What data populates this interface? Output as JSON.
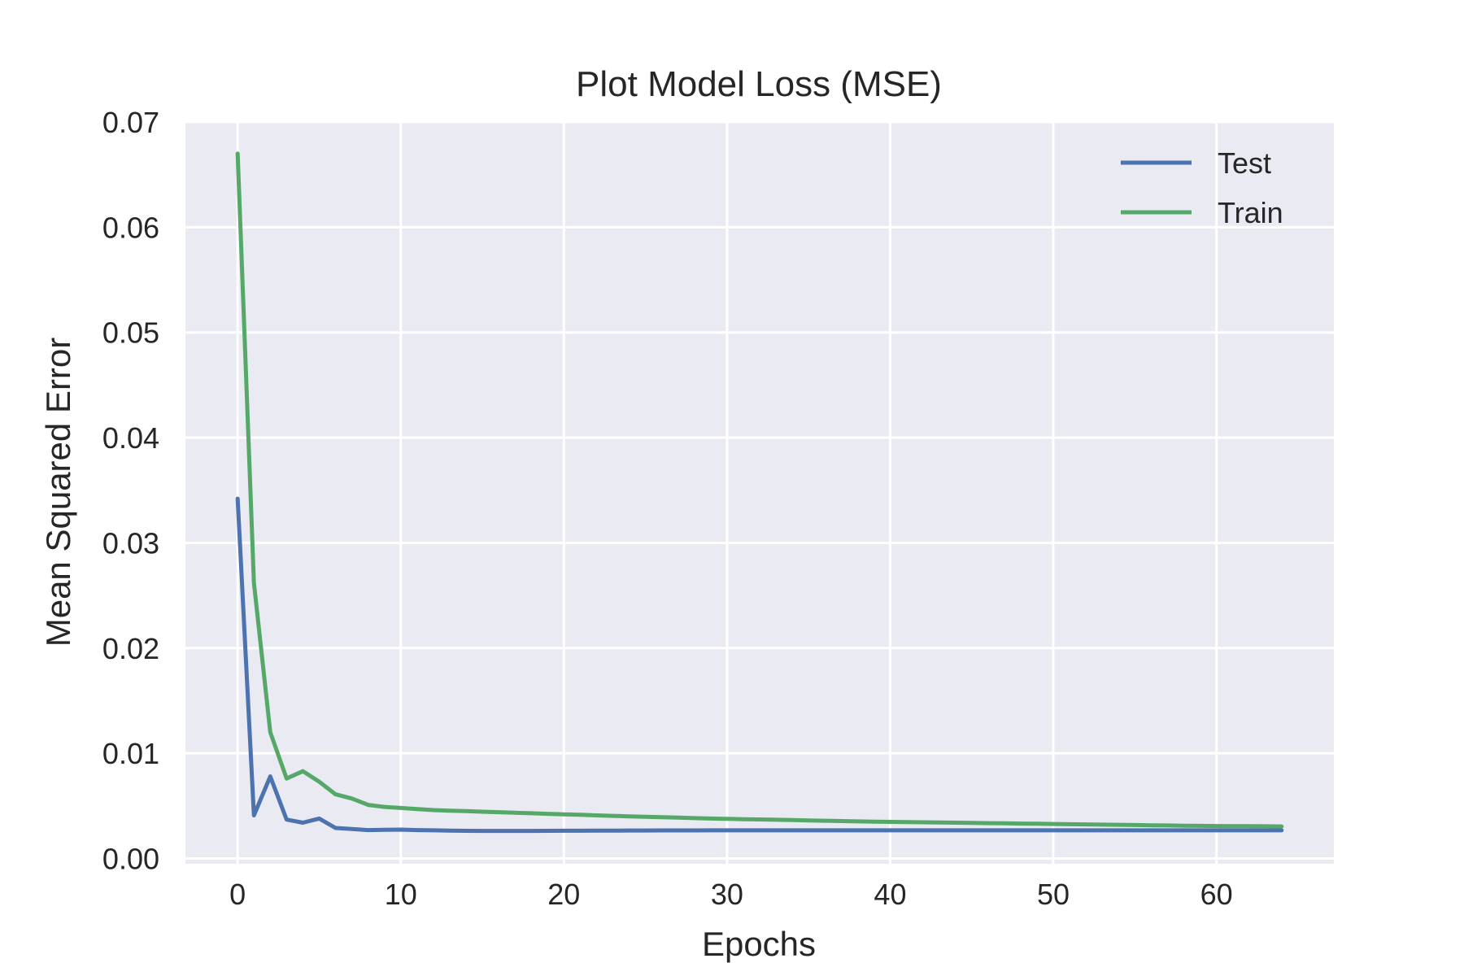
{
  "chart_data": {
    "type": "line",
    "title": "Plot Model Loss (MSE)",
    "xlabel": "Epochs",
    "ylabel": "Mean Squared Error",
    "xlim": [
      -3.2,
      67.2
    ],
    "ylim": [
      -0.0005,
      0.07
    ],
    "xticks": [
      0,
      10,
      20,
      30,
      40,
      50,
      60
    ],
    "yticks": [
      0.0,
      0.01,
      0.02,
      0.03,
      0.04,
      0.05,
      0.06,
      0.07
    ],
    "ytick_labels": [
      "0.00",
      "0.01",
      "0.02",
      "0.03",
      "0.04",
      "0.05",
      "0.06",
      "0.07"
    ],
    "grid": true,
    "legend_position": "top-right",
    "background": "#EAEAF2",
    "series": [
      {
        "name": "Test",
        "color": "#4C72B0",
        "x": [
          0,
          1,
          2,
          3,
          4,
          5,
          6,
          7,
          8,
          9,
          10,
          11,
          12,
          13,
          14,
          15,
          16,
          17,
          18,
          19,
          20,
          21,
          22,
          23,
          24,
          25,
          26,
          27,
          28,
          29,
          30,
          31,
          32,
          33,
          34,
          35,
          36,
          37,
          38,
          39,
          40,
          41,
          42,
          43,
          44,
          45,
          46,
          47,
          48,
          49,
          50,
          51,
          52,
          53,
          54,
          55,
          56,
          57,
          58,
          59,
          60,
          61,
          62,
          63,
          64
        ],
        "y": [
          0.0342,
          0.0041,
          0.0078,
          0.0037,
          0.0034,
          0.0038,
          0.0029,
          0.0028,
          0.0027,
          0.00272,
          0.00275,
          0.0027,
          0.00268,
          0.00265,
          0.00263,
          0.00262,
          0.00262,
          0.00262,
          0.00262,
          0.00263,
          0.00264,
          0.00264,
          0.00265,
          0.00265,
          0.00266,
          0.00266,
          0.00267,
          0.00267,
          0.00267,
          0.00268,
          0.00268,
          0.00268,
          0.00268,
          0.00268,
          0.00268,
          0.00268,
          0.00268,
          0.00268,
          0.00268,
          0.00268,
          0.00268,
          0.00268,
          0.00268,
          0.00268,
          0.00268,
          0.00268,
          0.00268,
          0.00268,
          0.00268,
          0.00268,
          0.00268,
          0.00268,
          0.00268,
          0.00268,
          0.00268,
          0.00268,
          0.00268,
          0.00268,
          0.00268,
          0.00268,
          0.00268,
          0.00268,
          0.00268,
          0.00268,
          0.00268
        ]
      },
      {
        "name": "Train",
        "color": "#55A868",
        "x": [
          0,
          1,
          2,
          3,
          4,
          5,
          6,
          7,
          8,
          9,
          10,
          11,
          12,
          13,
          14,
          15,
          16,
          17,
          18,
          19,
          20,
          21,
          22,
          23,
          24,
          25,
          26,
          27,
          28,
          29,
          30,
          31,
          32,
          33,
          34,
          35,
          36,
          37,
          38,
          39,
          40,
          41,
          42,
          43,
          44,
          45,
          46,
          47,
          48,
          49,
          50,
          51,
          52,
          53,
          54,
          55,
          56,
          57,
          58,
          59,
          60,
          61,
          62,
          63,
          64
        ],
        "y": [
          0.067,
          0.0262,
          0.012,
          0.0076,
          0.0083,
          0.0073,
          0.0061,
          0.0057,
          0.0051,
          0.0049,
          0.0048,
          0.0047,
          0.0046,
          0.00455,
          0.0045,
          0.00445,
          0.0044,
          0.00435,
          0.0043,
          0.00425,
          0.0042,
          0.00415,
          0.0041,
          0.00405,
          0.004,
          0.00396,
          0.00392,
          0.00388,
          0.00384,
          0.0038,
          0.00377,
          0.00374,
          0.00371,
          0.00368,
          0.00365,
          0.00362,
          0.00359,
          0.00356,
          0.00353,
          0.0035,
          0.00348,
          0.00346,
          0.00344,
          0.00342,
          0.0034,
          0.00338,
          0.00336,
          0.00334,
          0.00332,
          0.0033,
          0.00328,
          0.00326,
          0.00324,
          0.00322,
          0.0032,
          0.00318,
          0.00316,
          0.00314,
          0.00312,
          0.0031,
          0.00309,
          0.00308,
          0.00307,
          0.00306,
          0.00305
        ]
      }
    ]
  }
}
